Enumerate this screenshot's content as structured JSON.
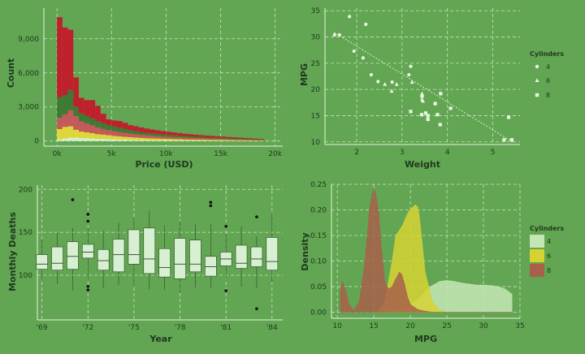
{
  "colors": {
    "background": "#62a552",
    "grid": "#c8e6c0",
    "axis_line": "#e8f5e0",
    "text": "#1e3a1e",
    "hist_red": "#c0202c",
    "hist_green": "#3f7a34",
    "hist_rose": "#c45a5a",
    "hist_yellow": "#e0d83a",
    "hist_light": "#d8f0c8",
    "scatter_point": "#e8f8e0",
    "box_fill": "#d8f0d2",
    "box_line": "#2a4a2a",
    "outlier": "#101010",
    "density_4": "#c4e6b4",
    "density_6": "#d6d232",
    "density_8": "#a8604a"
  },
  "chart_data": [
    {
      "id": "hist",
      "type": "bar",
      "stacked": true,
      "xlabel": "Price (USD)",
      "ylabel": "Count",
      "xlim": [
        -1200,
        20700
      ],
      "ylim": [
        -450,
        11700
      ],
      "x_ticks": [
        0,
        5000,
        10000,
        15000,
        20000
      ],
      "x_tick_labels": [
        "0k",
        "5k",
        "10k",
        "15k",
        "20k"
      ],
      "y_ticks": [
        0,
        3000,
        6000,
        9000
      ],
      "y_tick_labels": [
        "0",
        "3,000",
        "6,000",
        "9,000"
      ],
      "grid": true,
      "bin_starts": [
        0,
        500,
        1000,
        1500,
        2000,
        2500,
        3000,
        3500,
        4000,
        4500,
        5000,
        5500,
        6000,
        6500,
        7000,
        7500,
        8000,
        8500,
        9000,
        9500,
        10000,
        10500,
        11000,
        11500,
        12000,
        12500,
        13000,
        13500,
        14000,
        14500,
        15000,
        15500,
        16000,
        16500,
        17000,
        17500,
        18000,
        18500
      ],
      "bin_width": 500,
      "series": [
        {
          "color_key": "hist_light",
          "values": [
            150,
            250,
            300,
            300,
            280,
            260,
            240,
            210,
            190,
            170,
            150,
            130,
            120,
            110,
            100,
            90,
            80,
            75,
            70,
            65,
            60,
            55,
            50,
            45,
            40,
            38,
            35,
            32,
            30,
            28,
            25,
            22,
            20,
            18,
            15,
            12,
            10,
            8
          ]
        },
        {
          "color_key": "hist_yellow",
          "values": [
            900,
            1000,
            1000,
            700,
            550,
            500,
            450,
            400,
            380,
            340,
            300,
            280,
            250,
            230,
            210,
            190,
            170,
            160,
            150,
            140,
            130,
            120,
            110,
            100,
            95,
            90,
            85,
            80,
            75,
            70,
            65,
            60,
            55,
            50,
            45,
            40,
            35,
            30
          ]
        },
        {
          "color_key": "hist_rose",
          "values": [
            1000,
            1100,
            1400,
            1200,
            900,
            800,
            700,
            600,
            500,
            450,
            420,
            380,
            350,
            320,
            300,
            270,
            250,
            230,
            210,
            190,
            180,
            170,
            160,
            150,
            140,
            130,
            120,
            110,
            100,
            95,
            90,
            85,
            80,
            75,
            70,
            65,
            60,
            55
          ]
        },
        {
          "color_key": "hist_green",
          "values": [
            1800,
            1700,
            1800,
            800,
            700,
            650,
            600,
            550,
            500,
            450,
            420,
            380,
            340,
            300,
            270,
            250,
            230,
            210,
            190,
            180,
            170,
            160,
            150,
            140,
            130,
            120,
            110,
            100,
            95,
            90,
            85,
            80,
            75,
            70,
            65,
            60,
            55,
            50
          ]
        },
        {
          "color_key": "hist_red",
          "values": [
            7050,
            5950,
            5300,
            2600,
            1370,
            1390,
            1610,
            1340,
            830,
            490,
            520,
            590,
            540,
            440,
            420,
            400,
            370,
            340,
            320,
            300,
            270,
            250,
            230,
            210,
            195,
            180,
            170,
            160,
            150,
            140,
            125,
            110,
            100,
            90,
            80,
            70,
            55,
            45
          ]
        }
      ]
    },
    {
      "id": "scatter",
      "type": "scatter",
      "xlabel": "Weight",
      "ylabel": "MPG",
      "xlim": [
        1.3,
        5.6
      ],
      "ylim": [
        9.5,
        35.5
      ],
      "x_ticks": [
        2,
        3,
        4,
        5
      ],
      "y_ticks": [
        10,
        15,
        20,
        25,
        30,
        35
      ],
      "grid": true,
      "trendline": {
        "x": [
          1.5,
          5.45
        ],
        "y": [
          30.9,
          9.9
        ]
      },
      "legend": {
        "title": "Cylinders",
        "position": "right",
        "entries": [
          {
            "label": "4",
            "shape": "circle"
          },
          {
            "label": "6",
            "shape": "triangle"
          },
          {
            "label": "8",
            "shape": "square"
          }
        ]
      },
      "series": [
        {
          "name": "4",
          "shape": "circle",
          "points": [
            [
              1.62,
              30.4
            ],
            [
              1.84,
              33.9
            ],
            [
              1.94,
              27.3
            ],
            [
              2.14,
              26.0
            ],
            [
              2.2,
              32.4
            ],
            [
              2.32,
              22.8
            ],
            [
              2.47,
              21.5
            ],
            [
              2.78,
              21.4
            ],
            [
              3.19,
              24.4
            ],
            [
              3.15,
              22.8
            ],
            [
              1.51,
              30.4
            ]
          ]
        },
        {
          "name": "6",
          "shape": "triangle",
          "points": [
            [
              2.62,
              21.0
            ],
            [
              2.88,
              21.0
            ],
            [
              2.77,
              19.7
            ],
            [
              3.22,
              21.4
            ],
            [
              3.44,
              18.1
            ],
            [
              3.44,
              19.2
            ],
            [
              3.46,
              17.8
            ]
          ]
        },
        {
          "name": "8",
          "shape": "square",
          "points": [
            [
              3.44,
              18.7
            ],
            [
              3.57,
              14.3
            ],
            [
              3.19,
              15.8
            ],
            [
              3.52,
              15.5
            ],
            [
              3.43,
              15.2
            ],
            [
              3.73,
              17.3
            ],
            [
              3.78,
              15.2
            ],
            [
              3.84,
              13.3
            ],
            [
              3.85,
              19.2
            ],
            [
              3.57,
              15.0
            ],
            [
              4.07,
              16.4
            ],
            [
              5.25,
              10.4
            ],
            [
              5.42,
              10.4
            ],
            [
              5.35,
              14.7
            ]
          ]
        }
      ]
    },
    {
      "id": "box",
      "type": "box",
      "xlabel": "Year",
      "ylabel": "Monthly Deaths",
      "xlim": [
        1968.7,
        1984.7
      ],
      "ylim": [
        48,
        205
      ],
      "x_ticks": [
        1969,
        1972,
        1975,
        1978,
        1981,
        1984
      ],
      "x_tick_labels": [
        "'69",
        "'72",
        "'75",
        "'78",
        "'81",
        "'84"
      ],
      "y_ticks": [
        100,
        150,
        200
      ],
      "grid": true,
      "boxes": [
        {
          "year": 1969,
          "min": 95,
          "q1": 107,
          "median": 113,
          "q3": 124,
          "max": 142,
          "outliers": []
        },
        {
          "year": 1970,
          "min": 90,
          "q1": 106,
          "median": 114,
          "q3": 133,
          "max": 150,
          "outliers": []
        },
        {
          "year": 1971,
          "min": 82,
          "q1": 107,
          "median": 122,
          "q3": 139,
          "max": 155,
          "outliers": [
            188
          ]
        },
        {
          "year": 1972,
          "min": 95,
          "q1": 120,
          "median": 127,
          "q3": 136,
          "max": 155,
          "outliers": [
            171,
            163,
            87,
            83
          ]
        },
        {
          "year": 1973,
          "min": 85,
          "q1": 106,
          "median": 117,
          "q3": 130,
          "max": 152,
          "outliers": []
        },
        {
          "year": 1974,
          "min": 89,
          "q1": 104,
          "median": 124,
          "q3": 142,
          "max": 161,
          "outliers": []
        },
        {
          "year": 1975,
          "min": 88,
          "q1": 113,
          "median": 124,
          "q3": 153,
          "max": 167,
          "outliers": []
        },
        {
          "year": 1976,
          "min": 84,
          "q1": 102,
          "median": 119,
          "q3": 155,
          "max": 175,
          "outliers": []
        },
        {
          "year": 1977,
          "min": 83,
          "q1": 98,
          "median": 109,
          "q3": 131,
          "max": 158,
          "outliers": []
        },
        {
          "year": 1978,
          "min": 80,
          "q1": 96,
          "median": 113,
          "q3": 143,
          "max": 163,
          "outliers": []
        },
        {
          "year": 1979,
          "min": 86,
          "q1": 104,
          "median": 113,
          "q3": 141,
          "max": 160,
          "outliers": []
        },
        {
          "year": 1980,
          "min": 85,
          "q1": 99,
          "median": 110,
          "q3": 122,
          "max": 160,
          "outliers": [
            181,
            185
          ]
        },
        {
          "year": 1981,
          "min": 96,
          "q1": 111,
          "median": 119,
          "q3": 127,
          "max": 148,
          "outliers": [
            157,
            82
          ]
        },
        {
          "year": 1982,
          "min": 87,
          "q1": 108,
          "median": 114,
          "q3": 135,
          "max": 157,
          "outliers": []
        },
        {
          "year": 1983,
          "min": 85,
          "q1": 110,
          "median": 119,
          "q3": 133,
          "max": 145,
          "outliers": [
            168,
            61
          ]
        },
        {
          "year": 1984,
          "min": 92,
          "q1": 106,
          "median": 116,
          "q3": 144,
          "max": 172,
          "outliers": []
        }
      ]
    },
    {
      "id": "density",
      "type": "area",
      "xlabel": "MPG",
      "ylabel": "Density",
      "xlim": [
        9.2,
        35
      ],
      "ylim": [
        -0.012,
        0.25
      ],
      "x_ticks": [
        10,
        15,
        20,
        25,
        30,
        35
      ],
      "y_ticks": [
        0,
        0.05,
        0.1,
        0.15,
        0.2,
        0.25
      ],
      "y_tick_labels": [
        "0.00",
        "0.05",
        "0.10",
        "0.15",
        "0.20",
        "0.25"
      ],
      "grid": true,
      "legend": {
        "title": "Cylinders",
        "position": "right",
        "entries": [
          "4",
          "6",
          "8"
        ]
      },
      "series": [
        {
          "name": "4",
          "color_key": "density_4",
          "x": [
            16,
            18,
            20,
            21,
            22,
            23,
            24,
            25,
            26,
            27,
            28,
            29,
            30,
            31,
            32,
            33,
            33.9
          ],
          "y": [
            0,
            0.004,
            0.015,
            0.025,
            0.04,
            0.052,
            0.06,
            0.062,
            0.06,
            0.057,
            0.055,
            0.053,
            0.053,
            0.052,
            0.05,
            0.045,
            0.035
          ]
        },
        {
          "name": "6",
          "color_key": "density_6",
          "x": [
            15.5,
            16.5,
            17.5,
            18,
            18.5,
            19,
            19.3,
            19.7,
            20,
            20.3,
            20.7,
            21,
            21.2,
            21.5,
            22,
            23,
            24,
            25
          ],
          "y": [
            0,
            0.02,
            0.1,
            0.15,
            0.16,
            0.172,
            0.183,
            0.195,
            0.2,
            0.205,
            0.21,
            0.205,
            0.19,
            0.15,
            0.08,
            0.02,
            0.004,
            0
          ]
        },
        {
          "name": "8",
          "color_key": "density_8",
          "x": [
            10.4,
            10.7,
            11.1,
            11.6,
            12.2,
            13,
            13.8,
            14.4,
            14.9,
            15.2,
            15.6,
            16,
            16.5,
            17,
            17.5,
            18,
            18.5,
            18.8,
            19.2,
            19.6,
            20,
            21,
            22,
            23,
            25,
            28,
            30,
            33.9
          ],
          "y": [
            0.04,
            0.06,
            0.045,
            0.015,
            0.003,
            0.02,
            0.1,
            0.2,
            0.24,
            0.235,
            0.2,
            0.13,
            0.06,
            0.045,
            0.05,
            0.065,
            0.078,
            0.074,
            0.055,
            0.03,
            0.015,
            0.005,
            0.002,
            0,
            0,
            0,
            0,
            0
          ]
        }
      ]
    }
  ]
}
